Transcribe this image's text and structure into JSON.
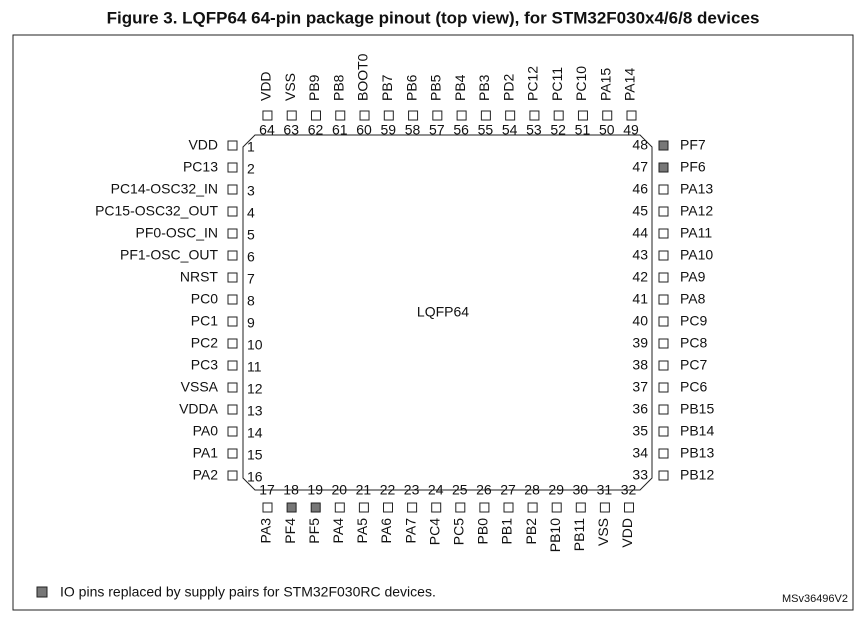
{
  "title": "Figure 3. LQFP64 64-pin package pinout (top view), for STM32F030x4/6/8 devices",
  "package_label": "LQFP64",
  "pins": [
    {
      "number": 1,
      "name": "VDD",
      "highlighted": false
    },
    {
      "number": 2,
      "name": "PC13",
      "highlighted": false
    },
    {
      "number": 3,
      "name": "PC14-OSC32_IN",
      "highlighted": false
    },
    {
      "number": 4,
      "name": "PC15-OSC32_OUT",
      "highlighted": false
    },
    {
      "number": 5,
      "name": "PF0-OSC_IN",
      "highlighted": false
    },
    {
      "number": 6,
      "name": "PF1-OSC_OUT",
      "highlighted": false
    },
    {
      "number": 7,
      "name": "NRST",
      "highlighted": false
    },
    {
      "number": 8,
      "name": "PC0",
      "highlighted": false
    },
    {
      "number": 9,
      "name": "PC1",
      "highlighted": false
    },
    {
      "number": 10,
      "name": "PC2",
      "highlighted": false
    },
    {
      "number": 11,
      "name": "PC3",
      "highlighted": false
    },
    {
      "number": 12,
      "name": "VSSA",
      "highlighted": false
    },
    {
      "number": 13,
      "name": "VDDA",
      "highlighted": false
    },
    {
      "number": 14,
      "name": "PA0",
      "highlighted": false
    },
    {
      "number": 15,
      "name": "PA1",
      "highlighted": false
    },
    {
      "number": 16,
      "name": "PA2",
      "highlighted": false
    },
    {
      "number": 17,
      "name": "PA3",
      "highlighted": false
    },
    {
      "number": 18,
      "name": "PF4",
      "highlighted": true
    },
    {
      "number": 19,
      "name": "PF5",
      "highlighted": true
    },
    {
      "number": 20,
      "name": "PA4",
      "highlighted": false
    },
    {
      "number": 21,
      "name": "PA5",
      "highlighted": false
    },
    {
      "number": 22,
      "name": "PA6",
      "highlighted": false
    },
    {
      "number": 23,
      "name": "PA7",
      "highlighted": false
    },
    {
      "number": 24,
      "name": "PC4",
      "highlighted": false
    },
    {
      "number": 25,
      "name": "PC5",
      "highlighted": false
    },
    {
      "number": 26,
      "name": "PB0",
      "highlighted": false
    },
    {
      "number": 27,
      "name": "PB1",
      "highlighted": false
    },
    {
      "number": 28,
      "name": "PB2",
      "highlighted": false
    },
    {
      "number": 29,
      "name": "PB10",
      "highlighted": false
    },
    {
      "number": 30,
      "name": "PB11",
      "highlighted": false
    },
    {
      "number": 31,
      "name": "VSS",
      "highlighted": false
    },
    {
      "number": 32,
      "name": "VDD",
      "highlighted": false
    },
    {
      "number": 33,
      "name": "PB12",
      "highlighted": false
    },
    {
      "number": 34,
      "name": "PB13",
      "highlighted": false
    },
    {
      "number": 35,
      "name": "PB14",
      "highlighted": false
    },
    {
      "number": 36,
      "name": "PB15",
      "highlighted": false
    },
    {
      "number": 37,
      "name": "PC6",
      "highlighted": false
    },
    {
      "number": 38,
      "name": "PC7",
      "highlighted": false
    },
    {
      "number": 39,
      "name": "PC8",
      "highlighted": false
    },
    {
      "number": 40,
      "name": "PC9",
      "highlighted": false
    },
    {
      "number": 41,
      "name": "PA8",
      "highlighted": false
    },
    {
      "number": 42,
      "name": "PA9",
      "highlighted": false
    },
    {
      "number": 43,
      "name": "PA10",
      "highlighted": false
    },
    {
      "number": 44,
      "name": "PA11",
      "highlighted": false
    },
    {
      "number": 45,
      "name": "PA12",
      "highlighted": false
    },
    {
      "number": 46,
      "name": "PA13",
      "highlighted": false
    },
    {
      "number": 47,
      "name": "PF6",
      "highlighted": true
    },
    {
      "number": 48,
      "name": "PF7",
      "highlighted": true
    },
    {
      "number": 49,
      "name": "PA14",
      "highlighted": false
    },
    {
      "number": 50,
      "name": "PA15",
      "highlighted": false
    },
    {
      "number": 51,
      "name": "PC10",
      "highlighted": false
    },
    {
      "number": 52,
      "name": "PC11",
      "highlighted": false
    },
    {
      "number": 53,
      "name": "PC12",
      "highlighted": false
    },
    {
      "number": 54,
      "name": "PD2",
      "highlighted": false
    },
    {
      "number": 55,
      "name": "PB3",
      "highlighted": false
    },
    {
      "number": 56,
      "name": "PB4",
      "highlighted": false
    },
    {
      "number": 57,
      "name": "PB5",
      "highlighted": false
    },
    {
      "number": 58,
      "name": "PB6",
      "highlighted": false
    },
    {
      "number": 59,
      "name": "PB7",
      "highlighted": false
    },
    {
      "number": 60,
      "name": "BOOT0",
      "highlighted": false
    },
    {
      "number": 61,
      "name": "PB8",
      "highlighted": false
    },
    {
      "number": 62,
      "name": "PB9",
      "highlighted": false
    },
    {
      "number": 63,
      "name": "VSS",
      "highlighted": false
    },
    {
      "number": 64,
      "name": "VDD",
      "highlighted": false
    }
  ],
  "legend": "IO pins replaced by supply pairs for STM32F030RC devices.",
  "figure_code": "MSv36496V2"
}
